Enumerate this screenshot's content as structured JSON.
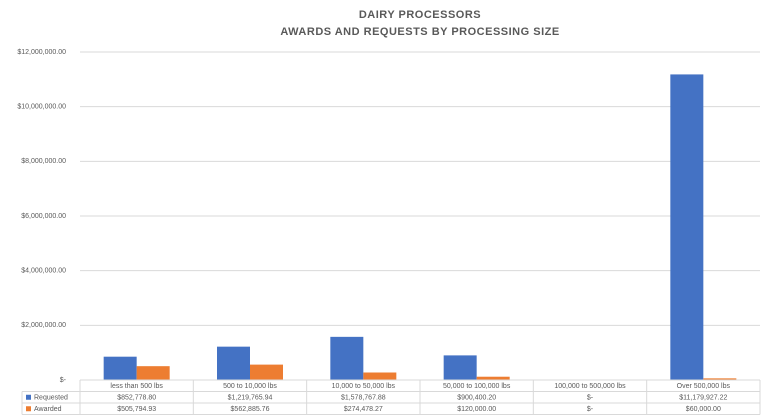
{
  "chart_data": {
    "type": "bar",
    "title": "DAIRY PROCESSORS",
    "subtitle": "AWARDS AND REQUESTS BY PROCESSING SIZE",
    "categories": [
      "less than 500 lbs",
      "500 to 10,000 lbs",
      "10,000 to 50,000 lbs",
      "50,000 to 100,000 lbs",
      "100,000 to 500,000 lbs",
      "Over 500,000 lbs"
    ],
    "series": [
      {
        "name": "Requested",
        "color": "#4472c4",
        "values": [
          852778.8,
          1219765.94,
          1578767.88,
          900400.2,
          0,
          11179927.22
        ],
        "value_labels": [
          "$852,778.80",
          "$1,219,765.94",
          "$1,578,767.88",
          "$900,400.20",
          "$-",
          "$11,179,927.22"
        ]
      },
      {
        "name": "Awarded",
        "color": "#ed7d31",
        "values": [
          505794.93,
          562885.76,
          274478.27,
          120000.0,
          0,
          60000.0
        ],
        "value_labels": [
          "$505,794.93",
          "$562,885.76",
          "$274,478.27",
          "$120,000.00",
          "$-",
          "$60,000.00"
        ]
      }
    ],
    "ylim": [
      0,
      12000000
    ],
    "yticks": [
      {
        "value": 0,
        "label": "$-"
      },
      {
        "value": 2000000,
        "label": "$2,000,000.00"
      },
      {
        "value": 4000000,
        "label": "$4,000,000.00"
      },
      {
        "value": 6000000,
        "label": "$6,000,000.00"
      },
      {
        "value": 8000000,
        "label": "$8,000,000.00"
      },
      {
        "value": 10000000,
        "label": "$10,000,000.00"
      },
      {
        "value": 12000000,
        "label": "$12,000,000.00"
      }
    ],
    "grid": true
  }
}
